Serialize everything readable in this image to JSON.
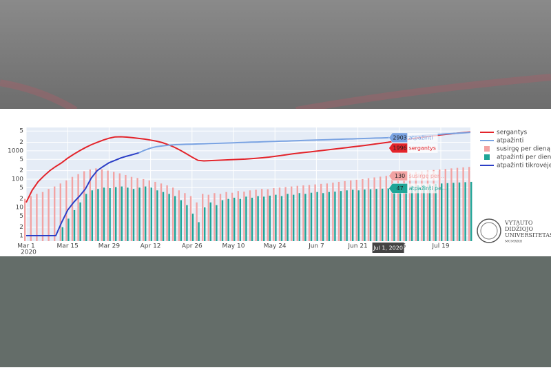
{
  "chart_data": {
    "type": "line",
    "yscale": "log",
    "grid": true,
    "x": [
      "2020-03-01",
      "2020-03-03",
      "2020-03-05",
      "2020-03-07",
      "2020-03-09",
      "2020-03-11",
      "2020-03-13",
      "2020-03-15",
      "2020-03-17",
      "2020-03-19",
      "2020-03-21",
      "2020-03-23",
      "2020-03-25",
      "2020-03-27",
      "2020-03-29",
      "2020-03-31",
      "2020-04-02",
      "2020-04-04",
      "2020-04-06",
      "2020-04-08",
      "2020-04-10",
      "2020-04-12",
      "2020-04-14",
      "2020-04-16",
      "2020-04-18",
      "2020-04-20",
      "2020-04-22",
      "2020-04-24",
      "2020-04-26",
      "2020-04-28",
      "2020-04-30",
      "2020-05-02",
      "2020-05-04",
      "2020-05-06",
      "2020-05-08",
      "2020-05-10",
      "2020-05-12",
      "2020-05-14",
      "2020-05-16",
      "2020-05-18",
      "2020-05-20",
      "2020-05-22",
      "2020-05-24",
      "2020-05-26",
      "2020-05-28",
      "2020-05-30",
      "2020-06-01",
      "2020-06-03",
      "2020-06-05",
      "2020-06-07",
      "2020-06-09",
      "2020-06-11",
      "2020-06-13",
      "2020-06-15",
      "2020-06-17",
      "2020-06-19",
      "2020-06-21",
      "2020-06-23",
      "2020-06-25",
      "2020-06-27",
      "2020-06-29",
      "2020-07-01",
      "2020-07-03",
      "2020-07-05",
      "2020-07-07",
      "2020-07-09",
      "2020-07-11",
      "2020-07-13",
      "2020-07-15",
      "2020-07-17",
      "2020-07-19",
      "2020-07-21",
      "2020-07-23",
      "2020-07-25",
      "2020-07-27",
      "2020-07-29"
    ],
    "xlim": [
      "2020-03-01",
      "2020-07-29"
    ],
    "xticks": [
      {
        "value": "2020-03-01",
        "label": "Mar 1"
      },
      {
        "value": "2020-03-15",
        "label": "Mar 15"
      },
      {
        "value": "2020-03-29",
        "label": "Mar 29"
      },
      {
        "value": "2020-04-12",
        "label": "Apr 12"
      },
      {
        "value": "2020-04-26",
        "label": "Apr 26"
      },
      {
        "value": "2020-05-10",
        "label": "May 10"
      },
      {
        "value": "2020-05-24",
        "label": "May 24"
      },
      {
        "value": "2020-06-07",
        "label": "Jun 7"
      },
      {
        "value": "2020-06-21",
        "label": "Jun 21"
      },
      {
        "value": "2020-07-05",
        "label": "Jul 5"
      },
      {
        "value": "2020-07-19",
        "label": "Jul 19"
      }
    ],
    "x_year_label": "2020",
    "ylim": [
      0.64,
      6700
    ],
    "yticks": [
      1,
      2,
      5,
      10,
      {
        "value": 20,
        "label": "2"
      },
      {
        "value": 50,
        "label": "5"
      },
      100,
      {
        "value": 200,
        "label": "2"
      },
      {
        "value": 500,
        "label": "5"
      },
      1000,
      {
        "value": 2000,
        "label": "2"
      },
      {
        "value": 5000,
        "label": "5"
      }
    ],
    "series": [
      {
        "name": "sergantys",
        "type": "line",
        "color": "#e3242b",
        "hover_name": "sergantys",
        "values": [
          15,
          40,
          80,
          130,
          200,
          280,
          380,
          550,
          750,
          1000,
          1300,
          1650,
          2000,
          2400,
          2800,
          3100,
          3150,
          3050,
          2900,
          2750,
          2600,
          2400,
          2200,
          1950,
          1650,
          1350,
          1050,
          800,
          600,
          460,
          440,
          450,
          460,
          470,
          480,
          490,
          500,
          510,
          530,
          550,
          570,
          600,
          640,
          680,
          730,
          780,
          830,
          880,
          920,
          970,
          1030,
          1090,
          1150,
          1220,
          1290,
          1370,
          1450,
          1540,
          1640,
          1750,
          1870,
          1996,
          2150,
          2300,
          2470,
          2650,
          2850,
          3050,
          3250,
          3450,
          3650,
          3850,
          4050,
          4250,
          4450,
          4650
        ]
      },
      {
        "name": "atpažinti",
        "type": "line",
        "color": "#7aa3e2",
        "hover_name": "atpažinti",
        "values": [
          null,
          null,
          null,
          null,
          null,
          null,
          null,
          null,
          null,
          null,
          null,
          null,
          null,
          null,
          null,
          null,
          null,
          null,
          null,
          850,
          1050,
          1250,
          1400,
          1500,
          1580,
          1640,
          1680,
          1700,
          1727,
          1755,
          1783,
          1811,
          1840,
          1869,
          1899,
          1929,
          1960,
          1991,
          2023,
          2055,
          2088,
          2121,
          2155,
          2189,
          2224,
          2259,
          2295,
          2332,
          2369,
          2407,
          2445,
          2484,
          2524,
          2564,
          2605,
          2646,
          2688,
          2731,
          2775,
          2819,
          2860,
          2903,
          2995,
          3090,
          3190,
          3290,
          3395,
          3500,
          3615,
          3730,
          3850,
          3970,
          4100,
          4230,
          4360,
          4500
        ]
      },
      {
        "name": "susirgę per dieną",
        "type": "bar",
        "color": "#f2a3a3",
        "hover_name": "susirgę per...",
        "values": [
          20,
          25,
          30,
          35,
          45,
          55,
          70,
          90,
          120,
          150,
          190,
          220,
          240,
          220,
          200,
          180,
          160,
          140,
          120,
          110,
          100,
          90,
          80,
          70,
          60,
          50,
          40,
          32,
          25,
          15,
          30,
          28,
          32,
          30,
          35,
          33,
          38,
          36,
          40,
          42,
          45,
          44,
          48,
          50,
          52,
          55,
          58,
          60,
          62,
          65,
          68,
          70,
          75,
          80,
          85,
          90,
          95,
          100,
          108,
          115,
          122,
          130,
          140,
          150,
          160,
          170,
          180,
          190,
          200,
          210,
          220,
          230,
          240,
          250,
          260,
          270
        ]
      },
      {
        "name": "atpažinti per dieną",
        "type": "bar",
        "color": "#1fa597",
        "hover_name": "atpažinti pe...",
        "values": [
          null,
          null,
          null,
          null,
          null,
          null,
          2,
          4,
          8,
          15,
          30,
          40,
          45,
          50,
          48,
          52,
          55,
          50,
          45,
          50,
          55,
          50,
          40,
          35,
          30,
          25,
          18,
          12,
          6,
          3,
          10,
          15,
          12,
          18,
          20,
          22,
          20,
          24,
          22,
          25,
          24,
          26,
          28,
          25,
          30,
          28,
          32,
          30,
          33,
          35,
          32,
          35,
          36,
          38,
          40,
          42,
          40,
          43,
          44,
          45,
          46,
          47,
          50,
          52,
          55,
          58,
          60,
          62,
          65,
          68,
          70,
          72,
          74,
          76,
          78,
          80
        ]
      },
      {
        "name": "atpažinti tikrovėje",
        "type": "line",
        "color": "#2b3ec6",
        "values": [
          1,
          1,
          1,
          1,
          1,
          1,
          3,
          8,
          15,
          25,
          45,
          110,
          200,
          280,
          380,
          460,
          560,
          650,
          740,
          850,
          null,
          null,
          null,
          null,
          null,
          null,
          null,
          null,
          null,
          null,
          null,
          null,
          null,
          null,
          null,
          null,
          null,
          null,
          null,
          null,
          null,
          null,
          null,
          null,
          null,
          null,
          null,
          null,
          null,
          null,
          null,
          null,
          null,
          null,
          null,
          null,
          null,
          null,
          null,
          null,
          null,
          null,
          null,
          null,
          null,
          null,
          null,
          null,
          null,
          null,
          null,
          null,
          null,
          null,
          null,
          null
        ]
      }
    ],
    "hover": {
      "x": "2020-07-01",
      "x_label": "Jul 1, 2020"
    }
  },
  "logo": {
    "lines": [
      "VYTAUTO",
      "DIDŽIOJO",
      "UNIVERSITETAS"
    ],
    "motto": "MCMXXII"
  }
}
